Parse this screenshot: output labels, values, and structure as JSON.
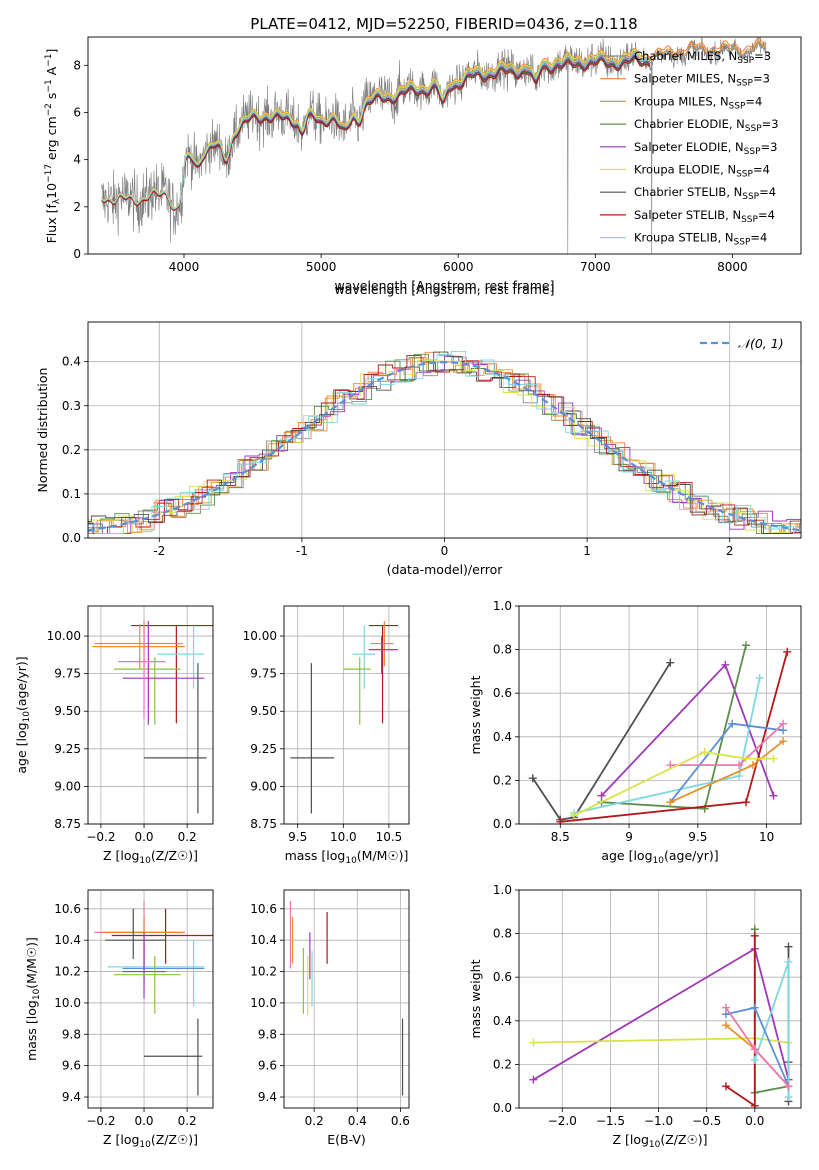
{
  "figure": {
    "title": "PLATE=0412, MJD=52250, FIBERID=0436, z=0.118"
  },
  "colors": {
    "chabrier_miles": "#8c8c8c",
    "salpeter_miles": "#f07f3c",
    "kroupa_miles": "#e8902a",
    "chabrier_elodie": "#5a8f4a",
    "salpeter_elodie": "#a038b8",
    "kroupa_elodie": "#d8e44a",
    "chabrier_stelib": "#505050",
    "salpeter_stelib": "#b01a1a",
    "kroupa_stelib": "#7fd8e0",
    "model_blue": "#5b8fd8",
    "model_pink": "#e878b0",
    "model_lime": "#8cc43c",
    "grid": "#b0b0b0"
  },
  "chart_data": [
    {
      "id": "spectrum",
      "type": "line",
      "xlabel": "wavelength [Angstrom, rest frame]",
      "ylabel": "Flux [f_λ10^-17 erg cm^-2 s^-1 A^-1]",
      "xlim": [
        3300,
        8500
      ],
      "ylim": [
        0,
        9.2
      ],
      "xticks": [
        4000,
        5000,
        6000,
        7000,
        8000
      ],
      "yticks": [
        0,
        2,
        4,
        6,
        8
      ],
      "grid": false,
      "legend_position": "top-right",
      "series": [
        {
          "name": "Chabrier MILES, N_SSP=3",
          "label_main": "Chabrier MILES, N",
          "label_sub": "SSP",
          "label_tail": "=3",
          "color_key": "chabrier_miles"
        },
        {
          "name": "Salpeter MILES, N_SSP=3",
          "label_main": "Salpeter MILES, N",
          "label_sub": "SSP",
          "label_tail": "=3",
          "color_key": "salpeter_miles"
        },
        {
          "name": "Kroupa MILES, N_SSP=4",
          "label_main": "Kroupa MILES, N",
          "label_sub": "SSP",
          "label_tail": "=4",
          "color_key": "kroupa_miles"
        },
        {
          "name": "Chabrier ELODIE, N_SSP=3",
          "label_main": "Chabrier ELODIE, N",
          "label_sub": "SSP",
          "label_tail": "=3",
          "color_key": "chabrier_elodie"
        },
        {
          "name": "Salpeter ELODIE, N_SSP=3",
          "label_main": "Salpeter ELODIE, N",
          "label_sub": "SSP",
          "label_tail": "=3",
          "color_key": "salpeter_elodie"
        },
        {
          "name": "Kroupa ELODIE, N_SSP=4",
          "label_main": "Kroupa ELODIE, N",
          "label_sub": "SSP",
          "label_tail": "=4",
          "color_key": "kroupa_elodie"
        },
        {
          "name": "Chabrier STELIB, N_SSP=4",
          "label_main": "Chabrier STELIB, N",
          "label_sub": "SSP",
          "label_tail": "=4",
          "color_key": "chabrier_stelib"
        },
        {
          "name": "Salpeter STELIB, N_SSP=4",
          "label_main": "Salpeter STELIB, N",
          "label_sub": "SSP",
          "label_tail": "=4",
          "color_key": "salpeter_stelib"
        },
        {
          "name": "Kroupa STELIB, N_SSP=4",
          "label_main": "Kroupa STELIB, N",
          "label_sub": "SSP",
          "label_tail": "=4",
          "color_key": "kroupa_stelib"
        }
      ],
      "continuum": {
        "wavelength": [
          3400,
          3500,
          3600,
          3700,
          3800,
          3900,
          4000,
          4100,
          4200,
          4300,
          4400,
          4500,
          4600,
          4700,
          4800,
          4900,
          5000,
          5100,
          5200,
          5300,
          5400,
          5500,
          5600,
          5700,
          5800,
          5900,
          6000,
          6100,
          6200,
          6300,
          6400,
          6500,
          6600,
          6700,
          6800,
          6900,
          7000,
          7100,
          7200,
          7300,
          7400,
          7500,
          7600,
          7700,
          7800,
          7900,
          8000,
          8100,
          8200
        ],
        "flux": [
          2.5,
          2.2,
          2.4,
          2.3,
          2.5,
          2.7,
          3.9,
          4.3,
          4.5,
          4.9,
          5.4,
          5.8,
          5.9,
          5.8,
          5.7,
          5.9,
          5.6,
          6.0,
          6.4,
          6.4,
          6.6,
          6.7,
          6.9,
          7.0,
          7.1,
          7.2,
          7.3,
          7.6,
          7.7,
          7.8,
          7.8,
          7.9,
          8.0,
          8.1,
          8.1,
          8.2,
          8.2,
          8.2,
          8.2,
          8.3,
          8.3,
          8.4,
          8.5,
          8.6,
          8.6,
          8.6,
          8.6,
          8.6,
          8.7
        ]
      }
    },
    {
      "id": "residuals",
      "type": "step",
      "xlabel": "(data-model)/error",
      "ylabel": "Normed distribution",
      "xlim": [
        -2.5,
        2.5
      ],
      "ylim": [
        0,
        0.49
      ],
      "xticks": [
        -2,
        -1,
        0,
        1,
        2
      ],
      "yticks": [
        0.0,
        0.1,
        0.2,
        0.3,
        0.4
      ],
      "grid": true,
      "legend_position": "top-right",
      "reference": {
        "name": "N(0,1)",
        "label": "𝒩(0, 1)",
        "mean": 0,
        "sigma": 1
      }
    },
    {
      "id": "age_vs_Z",
      "type": "errorbar",
      "xlabel_main": "Z [log",
      "xlabel_sub": "10",
      "xlabel_tail": "(Z/Z☉)]",
      "ylabel_main": "age  [log",
      "ylabel_sub": "10",
      "ylabel_tail": "(age/yr)]",
      "xlim": [
        -0.26,
        0.32
      ],
      "ylim": [
        8.75,
        10.2
      ],
      "xticks": [
        -0.2,
        0.0,
        0.2
      ],
      "xticklabels": [
        "−0.2",
        "0.0",
        "0.2"
      ],
      "yticks": [
        8.75,
        9.0,
        9.25,
        9.5,
        9.75,
        10.0
      ],
      "yticklabels": [
        "8.75",
        "9.00",
        "9.25",
        "9.50",
        "9.75",
        "10.00"
      ],
      "grid": true,
      "points": [
        {
          "color_key": "salpeter_stelib",
          "x": 0.15,
          "xlo": -0.06,
          "xhi": 0.32,
          "y": 10.07,
          "ylo": 9.42,
          "yhi": 10.07
        },
        {
          "color_key": "salpeter_miles",
          "x": 0.0,
          "xlo": -0.23,
          "xhi": 0.18,
          "y": 9.95,
          "ylo": 9.8,
          "yhi": 10.1
        },
        {
          "color_key": "kroupa_miles",
          "x": -0.02,
          "xlo": -0.24,
          "xhi": 0.19,
          "y": 9.93,
          "ylo": 9.78,
          "yhi": 10.08
        },
        {
          "color_key": "kroupa_stelib",
          "x": 0.23,
          "xlo": 0.06,
          "xhi": 0.28,
          "y": 9.88,
          "ylo": 9.65,
          "yhi": 10.07
        },
        {
          "color_key": "model_lime",
          "x": 0.05,
          "xlo": -0.14,
          "xhi": 0.17,
          "y": 9.78,
          "ylo": 9.41,
          "yhi": 9.86
        },
        {
          "color_key": "salpeter_elodie",
          "x": 0.02,
          "xlo": -0.1,
          "xhi": 0.28,
          "y": 9.72,
          "ylo": 9.41,
          "yhi": 10.1
        },
        {
          "color_key": "model_pink",
          "x": 0.0,
          "xlo": -0.12,
          "xhi": 0.1,
          "y": 9.83,
          "ylo": 9.45,
          "yhi": 10.05
        },
        {
          "color_key": "chabrier_stelib",
          "x": 0.25,
          "xlo": 0.0,
          "xhi": 0.29,
          "y": 9.19,
          "ylo": 8.82,
          "yhi": 9.82
        }
      ]
    },
    {
      "id": "age_vs_mass",
      "type": "errorbar",
      "xlabel_main": "mass [log",
      "xlabel_sub": "10",
      "xlabel_tail": "(M/M☉)]",
      "xlim": [
        9.35,
        10.72
      ],
      "ylim": [
        8.75,
        10.2
      ],
      "xticks": [
        9.5,
        10.0,
        10.5
      ],
      "xticklabels": [
        "9.5",
        "10.0",
        "10.5"
      ],
      "yticks": [
        8.75,
        9.0,
        9.25,
        9.5,
        9.75,
        10.0
      ],
      "yticklabels": [
        "8.75",
        "9.00",
        "9.25",
        "9.50",
        "9.75",
        "10.00"
      ],
      "grid": true,
      "points": [
        {
          "color_key": "salpeter_stelib",
          "x": 10.43,
          "xlo": 10.28,
          "xhi": 10.6,
          "y": 10.07,
          "ylo": 9.42,
          "yhi": 10.07
        },
        {
          "color_key": "salpeter_miles",
          "x": 10.45,
          "xlo": 10.3,
          "xhi": 10.55,
          "y": 9.95,
          "ylo": 9.8,
          "yhi": 10.1
        },
        {
          "color_key": "kroupa_stelib",
          "x": 10.23,
          "xlo": 10.1,
          "xhi": 10.35,
          "y": 9.88,
          "ylo": 9.65,
          "yhi": 10.07
        },
        {
          "color_key": "model_lime",
          "x": 10.18,
          "xlo": 10.0,
          "xhi": 10.3,
          "y": 9.78,
          "ylo": 9.41,
          "yhi": 9.86
        },
        {
          "color_key": "salpeter_elodie",
          "x": 10.42,
          "xlo": 10.28,
          "xhi": 10.6,
          "y": 9.91,
          "ylo": 9.75,
          "yhi": 10.0
        },
        {
          "color_key": "chabrier_stelib",
          "x": 9.65,
          "xlo": 9.42,
          "xhi": 9.9,
          "y": 9.19,
          "ylo": 8.82,
          "yhi": 9.82
        }
      ]
    },
    {
      "id": "weight_vs_age",
      "type": "line",
      "xlabel_main": "age  [log",
      "xlabel_sub": "10",
      "xlabel_tail": "(age/yr)]",
      "ylabel": "mass weight",
      "xlim": [
        8.2,
        10.25
      ],
      "ylim": [
        0,
        1.0
      ],
      "xticks": [
        8.5,
        9.0,
        9.5,
        10.0
      ],
      "yticks": [
        0.0,
        0.2,
        0.4,
        0.6,
        0.8,
        1.0
      ],
      "grid": true,
      "series": [
        {
          "color_key": "chabrier_stelib",
          "x": [
            8.3,
            8.5,
            8.6,
            9.3
          ],
          "y": [
            0.21,
            0.02,
            0.03,
            0.74
          ]
        },
        {
          "color_key": "salpeter_elodie",
          "x": [
            8.8,
            9.7,
            10.05
          ],
          "y": [
            0.13,
            0.73,
            0.13
          ]
        },
        {
          "color_key": "chabrier_elodie",
          "x": [
            8.8,
            9.55,
            9.85
          ],
          "y": [
            0.1,
            0.07,
            0.82
          ]
        },
        {
          "color_key": "salpeter_stelib",
          "x": [
            8.5,
            9.85,
            10.15
          ],
          "y": [
            0.01,
            0.1,
            0.79
          ]
        },
        {
          "color_key": "kroupa_stelib",
          "x": [
            8.6,
            9.8,
            9.95
          ],
          "y": [
            0.05,
            0.22,
            0.67
          ]
        },
        {
          "color_key": "model_blue",
          "x": [
            9.3,
            9.75,
            10.12
          ],
          "y": [
            0.1,
            0.46,
            0.43
          ]
        },
        {
          "color_key": "kroupa_miles",
          "x": [
            9.3,
            9.9,
            10.12
          ],
          "y": [
            0.1,
            0.27,
            0.38
          ]
        },
        {
          "color_key": "model_pink",
          "x": [
            9.3,
            9.8,
            10.12
          ],
          "y": [
            0.27,
            0.27,
            0.46
          ]
        },
        {
          "color_key": "kroupa_elodie",
          "x": [
            8.6,
            9.55,
            9.85,
            10.05
          ],
          "y": [
            0.04,
            0.33,
            0.3,
            0.3
          ]
        }
      ]
    },
    {
      "id": "mass_vs_Z",
      "type": "errorbar",
      "xlabel_main": "Z [log",
      "xlabel_sub": "10",
      "xlabel_tail": "(Z/Z☉)]",
      "ylabel_main": "mass [log",
      "ylabel_sub": "10",
      "ylabel_tail": "(M/M☉)]",
      "xlim": [
        -0.26,
        0.32
      ],
      "ylim": [
        9.33,
        10.72
      ],
      "xticks": [
        -0.2,
        0.0,
        0.2
      ],
      "xticklabels": [
        "−0.2",
        "0.0",
        "0.2"
      ],
      "yticks": [
        9.4,
        9.6,
        9.8,
        10.0,
        10.2,
        10.4,
        10.6
      ],
      "yticklabels": [
        "9.4",
        "9.6",
        "9.8",
        "10.0",
        "10.2",
        "10.4",
        "10.6"
      ],
      "grid": true,
      "points": [
        {
          "color_key": "model_pink",
          "x": 0.0,
          "xlo": -0.23,
          "xhi": 0.19,
          "y": 10.45,
          "ylo": 10.22,
          "yhi": 10.65
        },
        {
          "color_key": "salpeter_stelib",
          "x": 0.1,
          "xlo": -0.15,
          "xhi": 0.32,
          "y": 10.43,
          "ylo": 10.25,
          "yhi": 10.6
        },
        {
          "color_key": "salpeter_miles",
          "x": 0.0,
          "xlo": -0.2,
          "xhi": 0.18,
          "y": 10.45,
          "ylo": 10.3,
          "yhi": 10.55
        },
        {
          "color_key": "chabrier_stelib",
          "x": -0.05,
          "xlo": -0.18,
          "xhi": 0.1,
          "y": 10.4,
          "ylo": 10.28,
          "yhi": 10.6
        },
        {
          "color_key": "kroupa_stelib",
          "x": 0.23,
          "xlo": -0.17,
          "xhi": 0.28,
          "y": 10.23,
          "ylo": 9.98,
          "yhi": 10.4
        },
        {
          "color_key": "model_blue",
          "x": 0.0,
          "xlo": -0.1,
          "xhi": 0.28,
          "y": 10.22,
          "ylo": 10.13,
          "yhi": 10.3
        },
        {
          "color_key": "salpeter_elodie",
          "x": 0.0,
          "xlo": -0.1,
          "xhi": 0.1,
          "y": 10.2,
          "ylo": 10.03,
          "yhi": 10.45
        },
        {
          "color_key": "model_lime",
          "x": 0.05,
          "xlo": -0.14,
          "xhi": 0.17,
          "y": 10.18,
          "ylo": 9.93,
          "yhi": 10.3
        },
        {
          "color_key": "chabrier_stelib",
          "x": 0.25,
          "xlo": 0.0,
          "xhi": 0.27,
          "y": 9.66,
          "ylo": 9.41,
          "yhi": 9.9
        }
      ]
    },
    {
      "id": "mass_vs_ebv",
      "type": "errorbar",
      "xlabel": "E(B-V)",
      "xlim": [
        0.06,
        0.64
      ],
      "ylim": [
        9.33,
        10.72
      ],
      "xticks": [
        0.2,
        0.4,
        0.6
      ],
      "xticklabels": [
        "0.2",
        "0.4",
        "0.6"
      ],
      "yticks": [
        9.4,
        9.6,
        9.8,
        10.0,
        10.2,
        10.4,
        10.6
      ],
      "yticklabels": [
        "9.4",
        "9.6",
        "9.8",
        "10.0",
        "10.2",
        "10.4",
        "10.6"
      ],
      "grid": true,
      "points": [
        {
          "color_key": "model_pink",
          "x": 0.09,
          "y": 10.45,
          "ylo": 10.22,
          "yhi": 10.65
        },
        {
          "color_key": "kroupa_miles",
          "x": 0.1,
          "y": 10.4,
          "ylo": 10.25,
          "yhi": 10.55
        },
        {
          "color_key": "model_lime",
          "x": 0.15,
          "y": 10.18,
          "ylo": 9.93,
          "yhi": 10.35
        },
        {
          "color_key": "kroupa_elodie",
          "x": 0.17,
          "y": 10.15,
          "ylo": 9.92,
          "yhi": 10.3
        },
        {
          "color_key": "salpeter_elodie",
          "x": 0.18,
          "y": 10.3,
          "ylo": 10.15,
          "yhi": 10.45
        },
        {
          "color_key": "kroupa_stelib",
          "x": 0.19,
          "y": 10.15,
          "ylo": 9.98,
          "yhi": 10.33
        },
        {
          "color_key": "salpeter_stelib",
          "x": 0.26,
          "y": 10.4,
          "ylo": 10.25,
          "yhi": 10.58
        },
        {
          "color_key": "chabrier_stelib",
          "x": 0.61,
          "y": 9.66,
          "ylo": 9.41,
          "yhi": 9.9
        }
      ]
    },
    {
      "id": "weight_vs_Z",
      "type": "line",
      "xlabel_main": "Z [log",
      "xlabel_sub": "10",
      "xlabel_tail": "(Z/Z☉)]",
      "ylabel": "mass weight",
      "xlim": [
        -2.45,
        0.48
      ],
      "ylim": [
        0,
        1.0
      ],
      "xticks": [
        -2.0,
        -1.5,
        -1.0,
        -0.5,
        0.0
      ],
      "xticklabels": [
        "−2.0",
        "−1.5",
        "−1.0",
        "−0.5",
        "0.0"
      ],
      "yticks": [
        0.0,
        0.2,
        0.4,
        0.6,
        0.8,
        1.0
      ],
      "grid": true,
      "series": [
        {
          "color_key": "salpeter_elodie",
          "x": [
            -2.3,
            0.0,
            0.35
          ],
          "y": [
            0.13,
            0.73,
            0.13
          ]
        },
        {
          "color_key": "kroupa_elodie",
          "x": [
            -2.3,
            0.0,
            0.35
          ],
          "y": [
            0.3,
            0.32,
            0.3
          ]
        },
        {
          "color_key": "chabrier_stelib",
          "x": [
            0.35,
            0.35,
            0.35
          ],
          "y": [
            0.03,
            0.74,
            0.21
          ]
        },
        {
          "color_key": "chabrier_elodie",
          "x": [
            0.0,
            0.0,
            0.35
          ],
          "y": [
            0.82,
            0.07,
            0.1
          ]
        },
        {
          "color_key": "salpeter_stelib",
          "x": [
            -0.3,
            0.0,
            0.0
          ],
          "y": [
            0.1,
            0.01,
            0.79
          ]
        },
        {
          "color_key": "kroupa_stelib",
          "x": [
            0.0,
            0.35,
            0.35
          ],
          "y": [
            0.22,
            0.67,
            0.05
          ]
        },
        {
          "color_key": "model_blue",
          "x": [
            -0.3,
            0.0,
            0.35
          ],
          "y": [
            0.43,
            0.46,
            0.1
          ]
        },
        {
          "color_key": "kroupa_miles",
          "x": [
            -0.3,
            0.0,
            0.35
          ],
          "y": [
            0.38,
            0.27,
            0.1
          ]
        },
        {
          "color_key": "model_pink",
          "x": [
            -0.3,
            0.0,
            0.35
          ],
          "y": [
            0.46,
            0.27,
            0.1
          ]
        }
      ]
    }
  ]
}
